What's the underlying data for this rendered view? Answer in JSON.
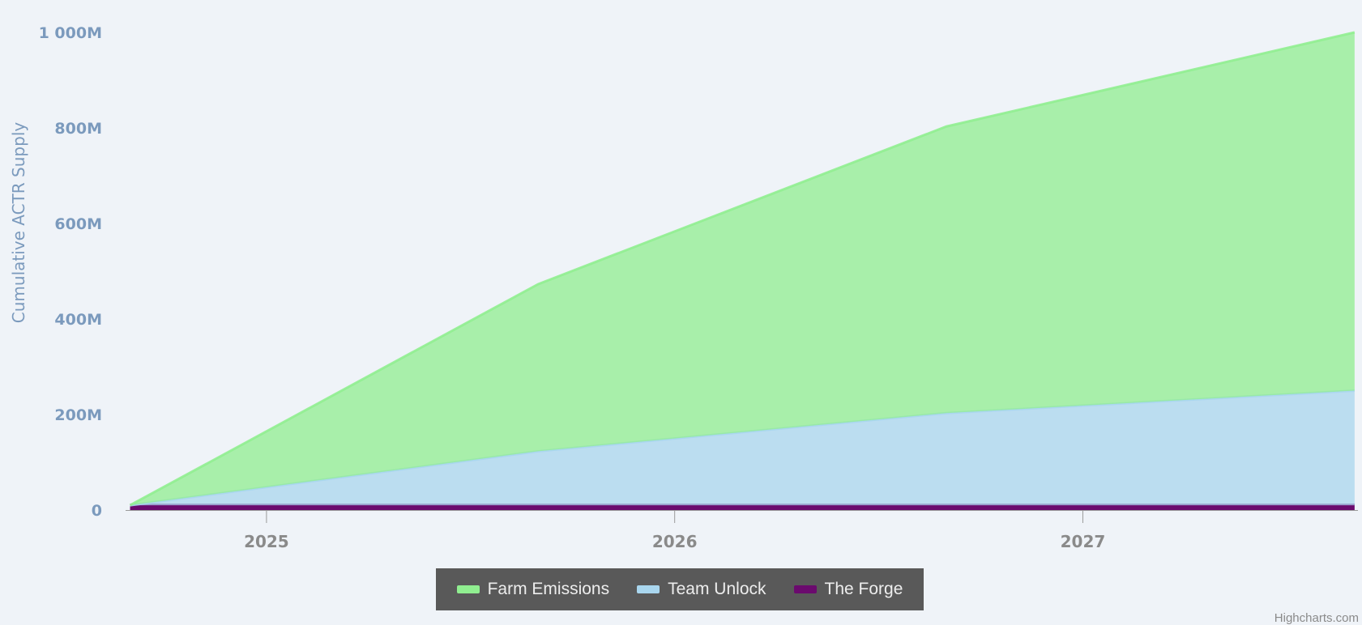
{
  "chart_data": {
    "type": "area",
    "stacking": "normal",
    "ylabel": "Cumulative ACTR Supply",
    "xlabel": "",
    "x_ticks": [
      "2025",
      "2026",
      "2027"
    ],
    "y_ticks": [
      "0",
      "200M",
      "400M",
      "600M",
      "800M",
      "1 000M"
    ],
    "ylim": [
      0,
      1000000000
    ],
    "xlim": [
      "2024-08-28",
      "2027-09-04"
    ],
    "x": [
      "2024-09-01",
      "2025-09-01",
      "2026-09-01",
      "2027-09-01"
    ],
    "series": [
      {
        "name": "The Forge",
        "color": "#6b0a6e",
        "values": [
          10000000,
          10000000,
          10000000,
          10000000
        ]
      },
      {
        "name": "Team Unlock",
        "color": "#a9d6ee",
        "values": [
          0,
          113000000,
          193000000,
          240000000
        ]
      },
      {
        "name": "Farm Emissions",
        "color": "#90ee90",
        "values": [
          0,
          350000000,
          600000000,
          750000000
        ]
      }
    ],
    "legend_position": "bottom-center",
    "credit": "Highcharts.com"
  }
}
